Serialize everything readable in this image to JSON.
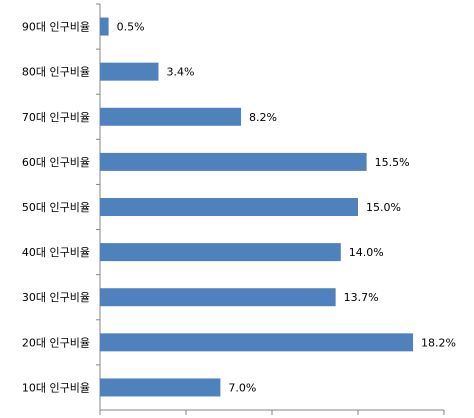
{
  "chart_data": {
    "type": "bar",
    "orientation": "horizontal",
    "categories": [
      "90대 인구비율",
      "80대 인구비율",
      "70대 인구비율",
      "60대 인구비율",
      "50대 인구비율",
      "40대 인구비율",
      "30대 인구비율",
      "20대 인구비율",
      "10대 인구비율"
    ],
    "values": [
      0.5,
      3.4,
      8.2,
      15.5,
      15.0,
      14.0,
      13.7,
      18.2,
      7.0
    ],
    "value_labels": [
      "0.5%",
      "3.4%",
      "8.2%",
      "15.5%",
      "15.0%",
      "14.0%",
      "13.7%",
      "18.2%",
      "7.0%"
    ],
    "color": "#4f81bd",
    "xlim": [
      0,
      20
    ],
    "xticks": [
      0,
      5,
      10,
      15,
      20
    ]
  }
}
